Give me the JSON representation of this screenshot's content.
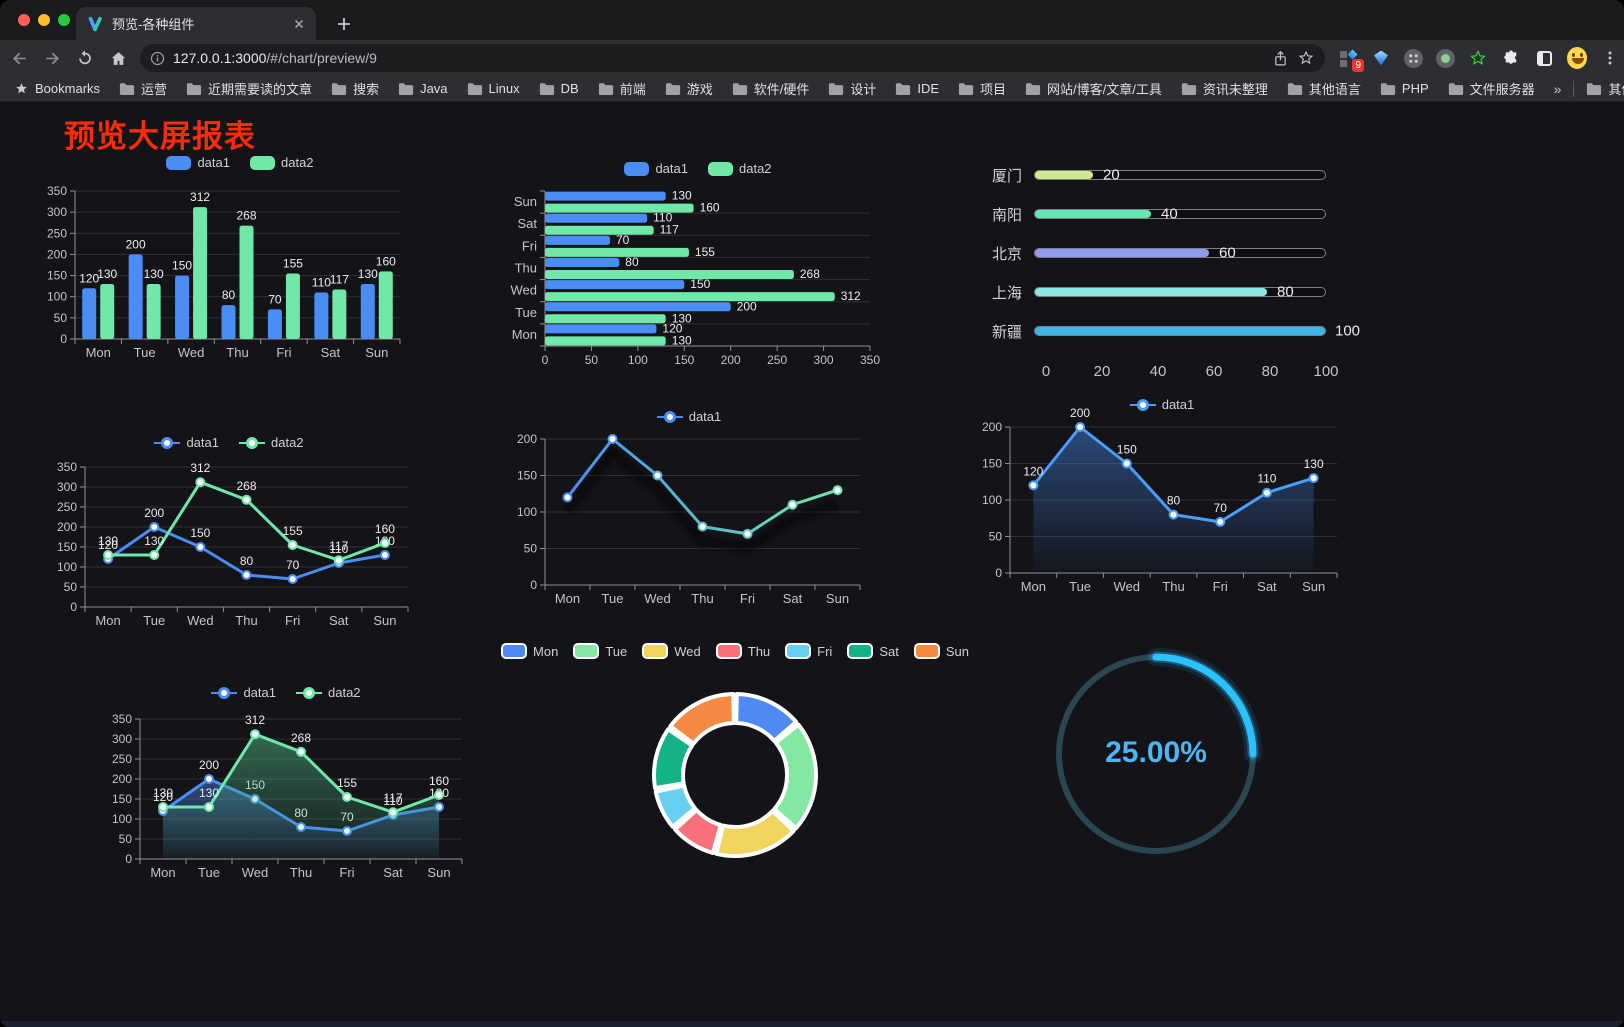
{
  "browser": {
    "tab_title": "预览-各种组件",
    "url_host": "127.0.0.1:3000",
    "url_path": "/#/chart/preview/9",
    "extension_badge": "9",
    "bookmarks_label": "Bookmarks",
    "bookmarks": [
      "运营",
      "近期需要读的文章",
      "搜索",
      "Java",
      "Linux",
      "DB",
      "前端",
      "游戏",
      "软件/硬件",
      "设计",
      "IDE",
      "项目",
      "网站/博客/文章/工具",
      "资讯未整理",
      "其他语言",
      "PHP",
      "文件服务器"
    ],
    "bookmarks_overflow": "»",
    "other_bookmarks": "其他书签"
  },
  "page": {
    "title": "预览大屏报表",
    "title_color": "#f72c0c"
  },
  "chart_data": [
    {
      "id": "c1",
      "type": "bar",
      "categories": [
        "Mon",
        "Tue",
        "Wed",
        "Thu",
        "Fri",
        "Sat",
        "Sun"
      ],
      "series": [
        {
          "name": "data1",
          "color": "#4a8df5",
          "values": [
            120,
            200,
            150,
            80,
            70,
            110,
            130
          ]
        },
        {
          "name": "data2",
          "color": "#6fe8a8",
          "values": [
            130,
            130,
            312,
            268,
            155,
            117,
            160
          ]
        }
      ],
      "ylim": [
        0,
        350
      ],
      "ytick_step": 50,
      "value_labels": true,
      "legend_style": "chip",
      "grid": true
    },
    {
      "id": "c2",
      "type": "bar-horizontal",
      "categories": [
        "Mon",
        "Tue",
        "Wed",
        "Thu",
        "Fri",
        "Sat",
        "Sun"
      ],
      "series": [
        {
          "name": "data1",
          "color": "#4a8df5",
          "values": [
            120,
            200,
            150,
            80,
            70,
            110,
            130
          ]
        },
        {
          "name": "data2",
          "color": "#6fe8a8",
          "values": [
            130,
            130,
            312,
            268,
            155,
            117,
            160
          ]
        }
      ],
      "xlim": [
        0,
        350
      ],
      "xtick_step": 50,
      "value_labels": true,
      "legend_style": "chip",
      "grid": true
    },
    {
      "id": "c3",
      "type": "progress",
      "rows": [
        {
          "label": "厦门",
          "value": 20,
          "color": "#cdeb8b"
        },
        {
          "label": "南阳",
          "value": 40,
          "color": "#63e6b0"
        },
        {
          "label": "北京",
          "value": 60,
          "color": "#929bec"
        },
        {
          "label": "上海",
          "value": 80,
          "color": "#8ce8e4"
        },
        {
          "label": "新疆",
          "value": 100,
          "color": "#3cb4e7"
        }
      ],
      "xticks": [
        0,
        20,
        40,
        60,
        80,
        100
      ]
    },
    {
      "id": "c4",
      "type": "line",
      "categories": [
        "Mon",
        "Tue",
        "Wed",
        "Thu",
        "Fri",
        "Sat",
        "Sun"
      ],
      "series": [
        {
          "name": "data1",
          "color": "#4a8df5",
          "values": [
            120,
            200,
            150,
            80,
            70,
            110,
            130
          ]
        },
        {
          "name": "data2",
          "color": "#6fe8a8",
          "values": [
            130,
            130,
            312,
            268,
            155,
            117,
            160
          ]
        }
      ],
      "ylim": [
        0,
        350
      ],
      "ytick_step": 50,
      "value_labels": true,
      "legend_style": "marker",
      "grid": true
    },
    {
      "id": "c5",
      "type": "line",
      "categories": [
        "Mon",
        "Tue",
        "Wed",
        "Thu",
        "Fri",
        "Sat",
        "Sun"
      ],
      "series": [
        {
          "name": "data1",
          "gradient": [
            "#4a8df5",
            "#6fe8a8"
          ],
          "values": [
            120,
            200,
            150,
            80,
            70,
            110,
            130
          ]
        }
      ],
      "ylim": [
        0,
        200
      ],
      "ytick_step": 50,
      "value_labels": false,
      "legend_style": "marker",
      "line_shadow": true,
      "grid": true
    },
    {
      "id": "c6",
      "type": "line",
      "categories": [
        "Mon",
        "Tue",
        "Wed",
        "Thu",
        "Fri",
        "Sat",
        "Sun"
      ],
      "series": [
        {
          "name": "data1",
          "color": "#4a9df8",
          "area": true,
          "area_colors": [
            "rgba(64,118,200,0.55)",
            "rgba(64,118,200,0.03)"
          ],
          "values": [
            120,
            200,
            150,
            80,
            70,
            110,
            130
          ]
        }
      ],
      "ylim": [
        0,
        200
      ],
      "ytick_step": 50,
      "value_labels": true,
      "legend_style": "marker",
      "grid": true
    },
    {
      "id": "c7",
      "type": "line",
      "categories": [
        "Mon",
        "Tue",
        "Wed",
        "Thu",
        "Fri",
        "Sat",
        "Sun"
      ],
      "series": [
        {
          "name": "data1",
          "color": "#4a8df5",
          "area": true,
          "area_colors": [
            "rgba(74,141,245,0.45)",
            "rgba(74,141,245,0.04)"
          ],
          "values": [
            120,
            200,
            150,
            80,
            70,
            110,
            130
          ]
        },
        {
          "name": "data2",
          "color": "#6fe8a8",
          "area": true,
          "area_colors": [
            "rgba(76,175,125,0.55)",
            "rgba(76,175,125,0.04)"
          ],
          "values": [
            130,
            130,
            312,
            268,
            155,
            117,
            160
          ]
        }
      ],
      "ylim": [
        0,
        350
      ],
      "ytick_step": 50,
      "value_labels": true,
      "legend_style": "marker",
      "grid": true
    },
    {
      "id": "c8",
      "type": "pie",
      "slices": [
        {
          "label": "Mon",
          "value": 120,
          "color": "#4f8af3"
        },
        {
          "label": "Tue",
          "value": 200,
          "color": "#84e8a2"
        },
        {
          "label": "Wed",
          "value": 150,
          "color": "#f0d45e"
        },
        {
          "label": "Thu",
          "value": 80,
          "color": "#f8707a"
        },
        {
          "label": "Fri",
          "value": 70,
          "color": "#67cff2"
        },
        {
          "label": "Sat",
          "value": 110,
          "color": "#13b287"
        },
        {
          "label": "Sun",
          "value": 130,
          "color": "#f68a43"
        }
      ],
      "inner_radius": 52,
      "outer_radius": 81,
      "border_color": "#ffffff"
    },
    {
      "id": "c9",
      "type": "gauge",
      "value": 25,
      "display": "25.00%",
      "progress_color": "#2bc1ff",
      "track_color": "#2a4650",
      "text_color": "#4cb5f4"
    }
  ]
}
